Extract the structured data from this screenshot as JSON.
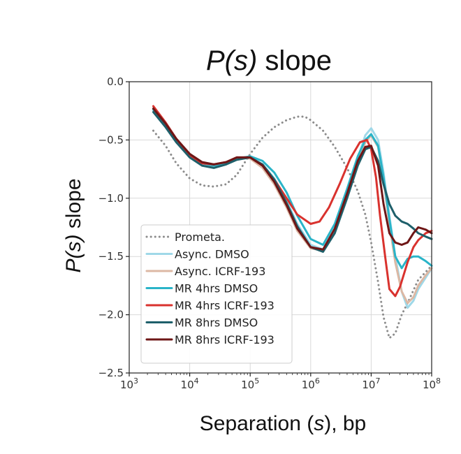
{
  "chart_data": {
    "type": "line",
    "title": {
      "italic": "P(s)",
      "rest": " slope"
    },
    "xlabel": {
      "pre": "Separation (",
      "italic": "s",
      "post": "), bp"
    },
    "ylabel": {
      "italic": "P(s)",
      "rest": " slope"
    },
    "xscale": "log",
    "xlim": [
      1000,
      100000000
    ],
    "ylim": [
      -2.5,
      0.0
    ],
    "grid": true,
    "legend_position": "lower-left",
    "yticks": [
      {
        "value": 0.0,
        "label": "0.0"
      },
      {
        "value": -0.5,
        "label": "−0.5"
      },
      {
        "value": -1.0,
        "label": "−1.0"
      },
      {
        "value": -1.5,
        "label": "−1.5"
      },
      {
        "value": -2.0,
        "label": "−2.0"
      },
      {
        "value": -2.5,
        "label": "−2.5"
      }
    ],
    "xticks": [
      {
        "value": 1000,
        "base": "10",
        "exp": "3"
      },
      {
        "value": 10000,
        "base": "10",
        "exp": "4"
      },
      {
        "value": 100000,
        "base": "10",
        "exp": "5"
      },
      {
        "value": 1000000,
        "base": "10",
        "exp": "6"
      },
      {
        "value": 10000000,
        "base": "10",
        "exp": "7"
      },
      {
        "value": 100000000,
        "base": "10",
        "exp": "8"
      }
    ],
    "series": [
      {
        "name": "Prometa.",
        "color": "#8c8c8c",
        "dash": "dotted",
        "x": [
          2500,
          4000,
          6000,
          10000,
          16000,
          25000,
          40000,
          60000,
          100000,
          160000,
          250000,
          400000,
          600000,
          800000,
          1000000,
          1600000,
          2500000,
          4000000,
          6000000,
          8000000,
          10000000,
          13000000,
          16000000,
          20000000,
          25000000,
          32000000,
          40000000,
          60000000,
          100000000
        ],
        "y": [
          -0.42,
          -0.55,
          -0.7,
          -0.83,
          -0.89,
          -0.9,
          -0.88,
          -0.8,
          -0.62,
          -0.48,
          -0.39,
          -0.33,
          -0.3,
          -0.3,
          -0.33,
          -0.42,
          -0.56,
          -0.74,
          -0.94,
          -1.14,
          -1.38,
          -1.72,
          -2.02,
          -2.2,
          -2.16,
          -2.0,
          -1.9,
          -1.7,
          -1.58
        ]
      },
      {
        "name": "Async. DMSO",
        "color": "#9fd8e8",
        "dash": "solid",
        "x": [
          2500,
          4000,
          6000,
          10000,
          16000,
          25000,
          40000,
          60000,
          100000,
          160000,
          250000,
          400000,
          600000,
          1000000,
          1600000,
          2500000,
          4000000,
          6000000,
          8000000,
          10000000,
          13000000,
          16000000,
          20000000,
          25000000,
          32000000,
          40000000,
          50000000,
          60000000,
          80000000,
          100000000
        ],
        "y": [
          -0.24,
          -0.37,
          -0.5,
          -0.63,
          -0.7,
          -0.72,
          -0.7,
          -0.66,
          -0.65,
          -0.71,
          -0.83,
          -1.02,
          -1.22,
          -1.4,
          -1.44,
          -1.27,
          -0.97,
          -0.66,
          -0.46,
          -0.4,
          -0.5,
          -0.78,
          -1.15,
          -1.5,
          -1.8,
          -1.94,
          -1.88,
          -1.78,
          -1.68,
          -1.6
        ]
      },
      {
        "name": "Async. ICRF-193",
        "color": "#dcb8a4",
        "dash": "solid",
        "x": [
          2500,
          4000,
          6000,
          10000,
          16000,
          25000,
          40000,
          60000,
          100000,
          160000,
          250000,
          400000,
          600000,
          1000000,
          1600000,
          2500000,
          4000000,
          6000000,
          8000000,
          10000000,
          13000000,
          16000000,
          20000000,
          25000000,
          32000000,
          40000000,
          50000000,
          60000000,
          80000000,
          100000000
        ],
        "y": [
          -0.23,
          -0.36,
          -0.49,
          -0.62,
          -0.69,
          -0.71,
          -0.69,
          -0.65,
          -0.66,
          -0.74,
          -0.88,
          -1.08,
          -1.28,
          -1.43,
          -1.45,
          -1.28,
          -0.99,
          -0.69,
          -0.52,
          -0.46,
          -0.56,
          -0.85,
          -1.22,
          -1.55,
          -1.8,
          -1.9,
          -1.85,
          -1.75,
          -1.66,
          -1.6
        ]
      },
      {
        "name": "MR 4hrs DMSO",
        "color": "#2ab4c8",
        "dash": "solid",
        "x": [
          2500,
          4000,
          6000,
          10000,
          16000,
          25000,
          40000,
          60000,
          100000,
          160000,
          250000,
          400000,
          600000,
          1000000,
          1600000,
          2500000,
          4000000,
          6000000,
          8000000,
          10000000,
          13000000,
          16000000,
          20000000,
          25000000,
          32000000,
          40000000,
          50000000,
          60000000,
          80000000,
          100000000
        ],
        "y": [
          -0.24,
          -0.37,
          -0.5,
          -0.63,
          -0.7,
          -0.72,
          -0.7,
          -0.66,
          -0.64,
          -0.68,
          -0.78,
          -0.95,
          -1.15,
          -1.35,
          -1.4,
          -1.22,
          -0.92,
          -0.64,
          -0.5,
          -0.45,
          -0.55,
          -0.82,
          -1.18,
          -1.5,
          -1.6,
          -1.52,
          -1.5,
          -1.5,
          -1.54,
          -1.58
        ]
      },
      {
        "name": "MR 4hrs ICRF-193",
        "color": "#d9322e",
        "dash": "solid",
        "x": [
          2500,
          4000,
          6000,
          10000,
          16000,
          25000,
          40000,
          60000,
          100000,
          160000,
          250000,
          400000,
          600000,
          1000000,
          1400000,
          2000000,
          3000000,
          4500000,
          6500000,
          8500000,
          10000000,
          12000000,
          14000000,
          17000000,
          20000000,
          25000000,
          30000000,
          40000000,
          50000000,
          60000000,
          80000000,
          100000000
        ],
        "y": [
          -0.21,
          -0.35,
          -0.49,
          -0.63,
          -0.7,
          -0.71,
          -0.69,
          -0.65,
          -0.65,
          -0.72,
          -0.84,
          -1.0,
          -1.14,
          -1.22,
          -1.2,
          -1.08,
          -0.88,
          -0.66,
          -0.52,
          -0.5,
          -0.58,
          -0.82,
          -1.15,
          -1.5,
          -1.78,
          -1.84,
          -1.76,
          -1.55,
          -1.42,
          -1.36,
          -1.3,
          -1.28
        ]
      },
      {
        "name": "MR 8hrs DMSO",
        "color": "#1e5f6a",
        "dash": "solid",
        "x": [
          2500,
          4000,
          6000,
          10000,
          16000,
          25000,
          40000,
          60000,
          100000,
          160000,
          250000,
          400000,
          600000,
          1000000,
          1600000,
          2500000,
          4000000,
          6000000,
          8000000,
          10000000,
          13000000,
          16000000,
          20000000,
          25000000,
          32000000,
          40000000,
          50000000,
          60000000,
          80000000,
          100000000
        ],
        "y": [
          -0.26,
          -0.39,
          -0.52,
          -0.65,
          -0.72,
          -0.74,
          -0.71,
          -0.67,
          -0.65,
          -0.71,
          -0.84,
          -1.04,
          -1.24,
          -1.42,
          -1.46,
          -1.3,
          -1.0,
          -0.72,
          -0.58,
          -0.56,
          -0.68,
          -0.88,
          -1.05,
          -1.15,
          -1.2,
          -1.22,
          -1.26,
          -1.3,
          -1.33,
          -1.35
        ]
      },
      {
        "name": "MR 8hrs ICRF-193",
        "color": "#6e1616",
        "dash": "solid",
        "x": [
          2500,
          4000,
          6000,
          10000,
          16000,
          25000,
          40000,
          60000,
          100000,
          160000,
          250000,
          400000,
          600000,
          1000000,
          1600000,
          2500000,
          4000000,
          6000000,
          8000000,
          10000000,
          13000000,
          16000000,
          20000000,
          25000000,
          32000000,
          40000000,
          50000000,
          60000000,
          80000000,
          100000000
        ],
        "y": [
          -0.23,
          -0.36,
          -0.49,
          -0.62,
          -0.69,
          -0.71,
          -0.69,
          -0.65,
          -0.65,
          -0.72,
          -0.86,
          -1.06,
          -1.26,
          -1.42,
          -1.44,
          -1.26,
          -0.96,
          -0.68,
          -0.56,
          -0.55,
          -0.72,
          -1.05,
          -1.3,
          -1.38,
          -1.4,
          -1.38,
          -1.3,
          -1.25,
          -1.27,
          -1.3
        ]
      }
    ]
  }
}
